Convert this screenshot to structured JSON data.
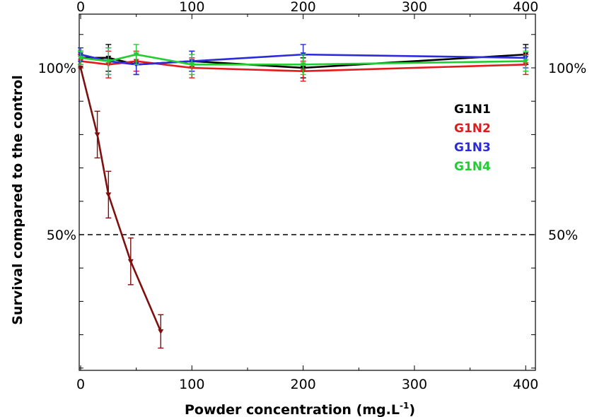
{
  "chart_data": {
    "type": "line",
    "xlabel": "Powder concentration (mg.L",
    "xlabel_sup": "-1",
    "xlabel_close": ")",
    "ylabel": "Survival  compared to the control",
    "xlim": [
      0,
      410
    ],
    "ylim": [
      0,
      110
    ],
    "x_ticks": [
      "0",
      "100",
      "200",
      "300",
      "400"
    ],
    "y_tick_labels": [
      {
        "value": 100,
        "text": "100%"
      },
      {
        "value": 50,
        "text": "50%"
      }
    ],
    "reference_line": {
      "y": 50,
      "style": "dashed"
    },
    "grid": false,
    "legend_position": "top-right",
    "series": [
      {
        "name": "G1N1",
        "color": "#000000",
        "x": [
          0,
          25,
          50,
          100,
          200,
          400
        ],
        "y": [
          103,
          103,
          101,
          102,
          100,
          104
        ],
        "err": [
          2,
          4,
          3,
          3,
          3,
          3
        ]
      },
      {
        "name": "G1N2",
        "color": "#e31a1c",
        "x": [
          0,
          25,
          50,
          100,
          200,
          400
        ],
        "y": [
          102,
          101,
          102,
          100,
          99,
          101
        ],
        "err": [
          2,
          4,
          3,
          3,
          3,
          3
        ]
      },
      {
        "name": "G1N3",
        "color": "#2b2bdb",
        "x": [
          0,
          25,
          50,
          100,
          200,
          400
        ],
        "y": [
          104,
          102,
          101,
          102,
          104,
          103
        ],
        "err": [
          2,
          4,
          3,
          3,
          3,
          3
        ]
      },
      {
        "name": "G1N4",
        "color": "#22cc33",
        "x": [
          0,
          25,
          50,
          100,
          200,
          400
        ],
        "y": [
          103,
          102,
          104,
          101,
          101,
          102
        ],
        "err": [
          2,
          4,
          3,
          3,
          3,
          3
        ]
      },
      {
        "color": "#7f0f0f",
        "x": [
          0,
          15,
          25,
          45,
          72
        ],
        "y": [
          100,
          80,
          62,
          42,
          21
        ],
        "err": [
          0,
          7,
          7,
          7,
          5
        ]
      }
    ]
  }
}
